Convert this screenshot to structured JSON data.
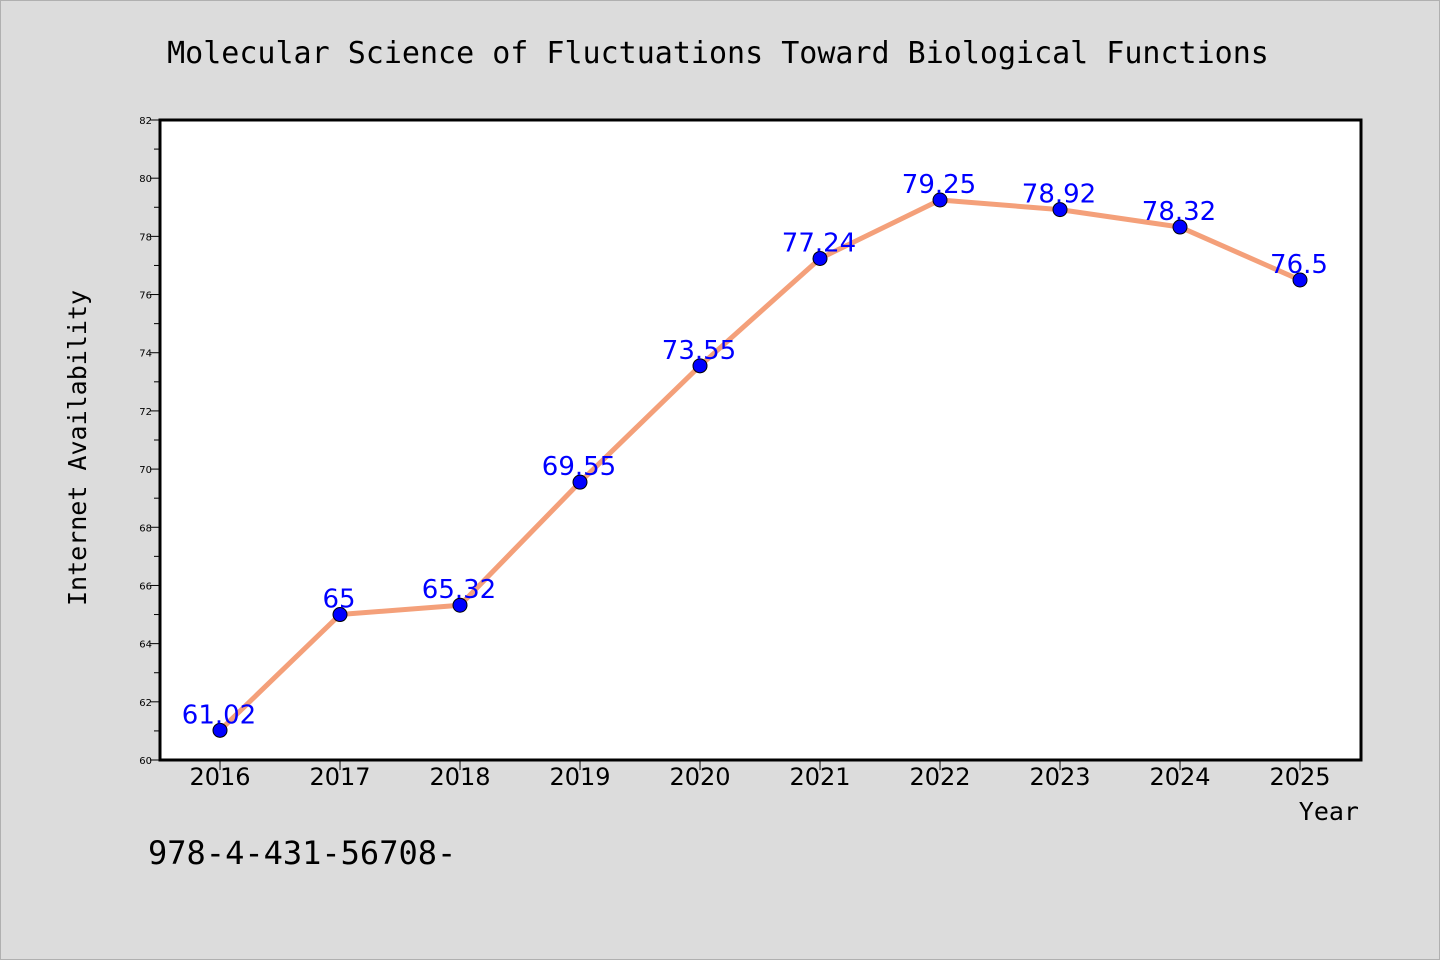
{
  "chart_data": {
    "type": "line",
    "title": "Molecular Science of Fluctuations Toward Biological Functions",
    "xlabel": "Year",
    "ylabel": "Internet Availability",
    "categories": [
      "2016",
      "2017",
      "2018",
      "2019",
      "2020",
      "2021",
      "2022",
      "2023",
      "2024",
      "2025"
    ],
    "values": [
      61.02,
      65,
      65.32,
      69.55,
      73.55,
      77.24,
      79.25,
      78.92,
      78.32,
      76.5
    ],
    "data_labels": [
      "61.02",
      "65",
      "65.32",
      "69.55",
      "73.55",
      "77.24",
      "79.25",
      "78.92",
      "78.32",
      "76.5"
    ],
    "ylim": [
      60,
      82
    ],
    "yticks": [
      "60",
      "62",
      "64",
      "66",
      "68",
      "70",
      "72",
      "74",
      "76",
      "78",
      "80",
      "82"
    ],
    "grid": false,
    "line_color": "#f4a07a",
    "marker_color": "#0000ff",
    "label_color": "#0000ff"
  },
  "footer_text": "978-4-431-56708-"
}
